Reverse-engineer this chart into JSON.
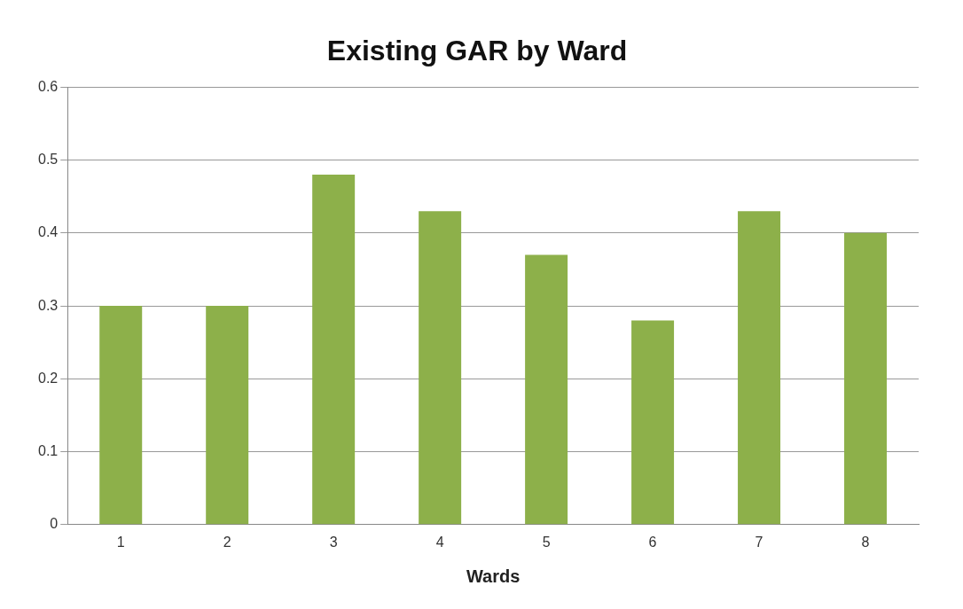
{
  "chart_data": {
    "type": "bar",
    "title": "Existing GAR by Ward",
    "xlabel": "Wards",
    "categories": [
      "1",
      "2",
      "3",
      "4",
      "5",
      "6",
      "7",
      "8"
    ],
    "values": [
      0.3,
      0.3,
      0.48,
      0.43,
      0.37,
      0.28,
      0.43,
      0.4
    ],
    "color": "#8db04a",
    "ylim": [
      0,
      0.6
    ],
    "yticks": [
      {
        "value": 0,
        "label": "0"
      },
      0.1,
      0.2,
      0.3,
      0.4,
      0.5,
      0.6
    ],
    "grid": "y",
    "legend": false
  }
}
